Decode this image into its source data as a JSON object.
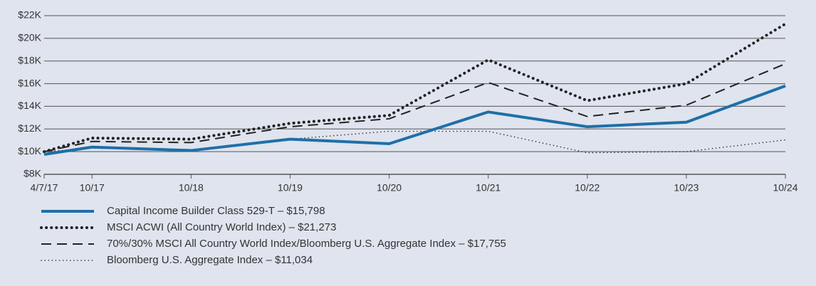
{
  "chart_data": {
    "type": "line",
    "x": [
      "4/7/17",
      "10/17",
      "10/18",
      "10/19",
      "10/20",
      "10/21",
      "10/22",
      "10/23",
      "10/24"
    ],
    "series": [
      {
        "name": "Capital Income Builder Class 529-T – $15,798",
        "color": "#1f6fa8",
        "values": [
          9.76,
          10.4,
          10.1,
          11.1,
          10.7,
          13.5,
          12.2,
          12.6,
          15.798
        ]
      },
      {
        "name": "MSCI ACWI (All Country World Index) – $21,273",
        "color": "#222222",
        "values": [
          10.0,
          11.2,
          11.1,
          12.5,
          13.2,
          18.1,
          14.5,
          16.0,
          21.273
        ]
      },
      {
        "name": "70%/30% MSCI All Country World Index/Bloomberg U.S. Aggregate Index – $17,755",
        "color": "#222222",
        "values": [
          10.0,
          10.9,
          10.8,
          12.2,
          12.9,
          16.1,
          13.1,
          14.1,
          17.755
        ]
      },
      {
        "name": "Bloomberg U.S. Aggregate Index – $11,034",
        "color": "#222222",
        "values": [
          10.0,
          10.3,
          10.1,
          11.1,
          11.8,
          11.8,
          9.9,
          10.0,
          11.034
        ]
      }
    ],
    "ylim": [
      8,
      22
    ],
    "yticks": [
      {
        "value": 8,
        "label": "$8K"
      },
      {
        "value": 10,
        "label": "$10K"
      },
      {
        "value": 12,
        "label": "$12K"
      },
      {
        "value": 14,
        "label": "$14K"
      },
      {
        "value": 16,
        "label": "$16K"
      },
      {
        "value": 18,
        "label": "$18K"
      },
      {
        "value": 20,
        "label": "$20K"
      },
      {
        "value": 22,
        "label": "$22K"
      }
    ],
    "grid": true
  }
}
